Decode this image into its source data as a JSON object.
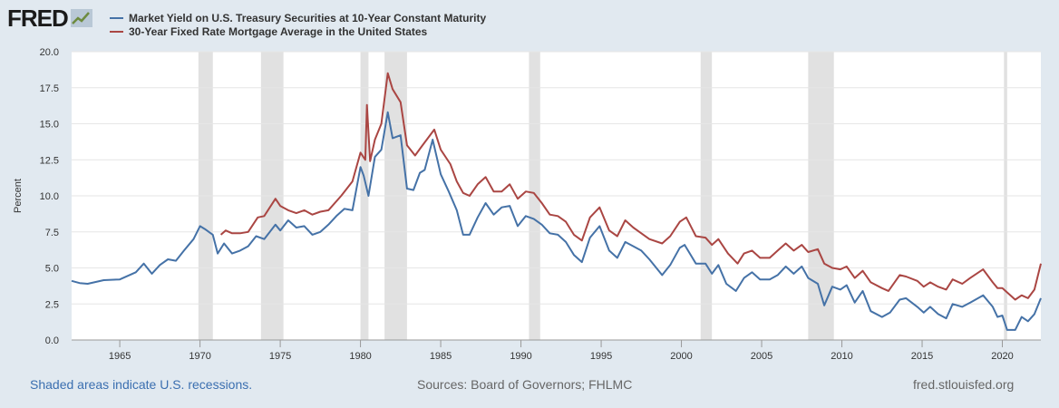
{
  "logo": {
    "text": "FRED"
  },
  "legend": [
    {
      "label": "Market Yield on U.S. Treasury Securities at 10-Year Constant Maturity",
      "color": "#4572a7"
    },
    {
      "label": "30-Year Fixed Rate Mortgage Average in the United States",
      "color": "#aa4643"
    }
  ],
  "footer": {
    "recessions_note": "Shaded areas indicate U.S. recessions.",
    "sources": "Sources: Board of Governors; FHLMC",
    "site": "fred.stlouisfed.org"
  },
  "chart_data": {
    "type": "line",
    "title": "",
    "xlabel": "",
    "ylabel": "Percent",
    "xlim": [
      1962.0,
      2022.4
    ],
    "ylim": [
      0,
      20
    ],
    "grid": true,
    "x_ticks": [
      1965,
      1970,
      1975,
      1980,
      1985,
      1990,
      1995,
      2000,
      2005,
      2010,
      2015,
      2020
    ],
    "x_tick_labels": [
      "1965",
      "1970",
      "1975",
      "1980",
      "1985",
      "1990",
      "1995",
      "2000",
      "2005",
      "2010",
      "2015",
      "2020"
    ],
    "y_ticks": [
      0,
      2.5,
      5,
      7.5,
      10,
      12.5,
      15,
      17.5,
      20
    ],
    "y_tick_labels": [
      "0.0",
      "2.5",
      "5.0",
      "7.5",
      "10.0",
      "12.5",
      "15.0",
      "17.5",
      "20.0"
    ],
    "recessions": [
      [
        1969.9,
        1970.8
      ],
      [
        1973.8,
        1975.2
      ],
      [
        1980.0,
        1980.5
      ],
      [
        1981.5,
        1982.9
      ],
      [
        1990.5,
        1991.2
      ],
      [
        2001.2,
        2001.9
      ],
      [
        2007.9,
        2009.5
      ],
      [
        2020.1,
        2020.3
      ]
    ],
    "series": [
      {
        "name": "Market Yield on U.S. Treasury Securities at 10-Year Constant Maturity",
        "color": "#4572a7",
        "points": [
          [
            1962.0,
            4.1
          ],
          [
            1962.5,
            3.95
          ],
          [
            1963.0,
            3.9
          ],
          [
            1964.0,
            4.15
          ],
          [
            1965.0,
            4.2
          ],
          [
            1966.0,
            4.7
          ],
          [
            1966.5,
            5.3
          ],
          [
            1967.0,
            4.6
          ],
          [
            1967.5,
            5.2
          ],
          [
            1968.0,
            5.6
          ],
          [
            1968.5,
            5.5
          ],
          [
            1969.0,
            6.2
          ],
          [
            1969.6,
            7.0
          ],
          [
            1970.0,
            7.9
          ],
          [
            1970.3,
            7.7
          ],
          [
            1970.8,
            7.3
          ],
          [
            1971.1,
            6.0
          ],
          [
            1971.5,
            6.7
          ],
          [
            1972.0,
            6.0
          ],
          [
            1972.5,
            6.2
          ],
          [
            1973.0,
            6.5
          ],
          [
            1973.5,
            7.2
          ],
          [
            1974.0,
            7.0
          ],
          [
            1974.7,
            8.0
          ],
          [
            1975.0,
            7.6
          ],
          [
            1975.5,
            8.3
          ],
          [
            1976.0,
            7.8
          ],
          [
            1976.5,
            7.9
          ],
          [
            1977.0,
            7.3
          ],
          [
            1977.5,
            7.5
          ],
          [
            1978.0,
            8.0
          ],
          [
            1978.5,
            8.6
          ],
          [
            1979.0,
            9.1
          ],
          [
            1979.5,
            9.0
          ],
          [
            1980.0,
            12.0
          ],
          [
            1980.2,
            11.4
          ],
          [
            1980.5,
            10.0
          ],
          [
            1980.9,
            12.7
          ],
          [
            1981.3,
            13.2
          ],
          [
            1981.7,
            15.8
          ],
          [
            1982.0,
            14.0
          ],
          [
            1982.5,
            14.2
          ],
          [
            1982.9,
            10.5
          ],
          [
            1983.3,
            10.4
          ],
          [
            1983.7,
            11.6
          ],
          [
            1984.0,
            11.8
          ],
          [
            1984.5,
            13.9
          ],
          [
            1985.0,
            11.5
          ],
          [
            1985.5,
            10.3
          ],
          [
            1986.0,
            9.0
          ],
          [
            1986.4,
            7.3
          ],
          [
            1986.8,
            7.3
          ],
          [
            1987.3,
            8.5
          ],
          [
            1987.8,
            9.5
          ],
          [
            1988.3,
            8.7
          ],
          [
            1988.8,
            9.2
          ],
          [
            1989.3,
            9.3
          ],
          [
            1989.8,
            7.9
          ],
          [
            1990.3,
            8.6
          ],
          [
            1990.8,
            8.4
          ],
          [
            1991.3,
            8.0
          ],
          [
            1991.8,
            7.4
          ],
          [
            1992.3,
            7.3
          ],
          [
            1992.8,
            6.8
          ],
          [
            1993.3,
            5.9
          ],
          [
            1993.8,
            5.4
          ],
          [
            1994.3,
            7.1
          ],
          [
            1994.9,
            7.9
          ],
          [
            1995.5,
            6.2
          ],
          [
            1996.0,
            5.7
          ],
          [
            1996.5,
            6.8
          ],
          [
            1997.0,
            6.5
          ],
          [
            1997.5,
            6.2
          ],
          [
            1998.0,
            5.6
          ],
          [
            1998.8,
            4.5
          ],
          [
            1999.3,
            5.2
          ],
          [
            1999.9,
            6.4
          ],
          [
            2000.2,
            6.6
          ],
          [
            2000.9,
            5.3
          ],
          [
            2001.5,
            5.3
          ],
          [
            2001.9,
            4.6
          ],
          [
            2002.3,
            5.2
          ],
          [
            2002.8,
            3.9
          ],
          [
            2003.4,
            3.4
          ],
          [
            2003.9,
            4.3
          ],
          [
            2004.4,
            4.7
          ],
          [
            2004.9,
            4.2
          ],
          [
            2005.5,
            4.2
          ],
          [
            2006.0,
            4.5
          ],
          [
            2006.5,
            5.1
          ],
          [
            2007.0,
            4.6
          ],
          [
            2007.5,
            5.1
          ],
          [
            2007.9,
            4.3
          ],
          [
            2008.5,
            3.9
          ],
          [
            2008.9,
            2.4
          ],
          [
            2009.4,
            3.7
          ],
          [
            2009.9,
            3.5
          ],
          [
            2010.3,
            3.8
          ],
          [
            2010.8,
            2.6
          ],
          [
            2011.3,
            3.4
          ],
          [
            2011.8,
            2.0
          ],
          [
            2012.5,
            1.6
          ],
          [
            2013.0,
            1.9
          ],
          [
            2013.6,
            2.8
          ],
          [
            2014.0,
            2.9
          ],
          [
            2014.7,
            2.3
          ],
          [
            2015.1,
            1.9
          ],
          [
            2015.5,
            2.3
          ],
          [
            2016.0,
            1.8
          ],
          [
            2016.5,
            1.5
          ],
          [
            2016.9,
            2.5
          ],
          [
            2017.5,
            2.3
          ],
          [
            2018.0,
            2.6
          ],
          [
            2018.8,
            3.1
          ],
          [
            2019.4,
            2.3
          ],
          [
            2019.7,
            1.6
          ],
          [
            2020.0,
            1.7
          ],
          [
            2020.3,
            0.7
          ],
          [
            2020.8,
            0.7
          ],
          [
            2021.2,
            1.6
          ],
          [
            2021.6,
            1.3
          ],
          [
            2022.0,
            1.8
          ],
          [
            2022.4,
            2.9
          ]
        ]
      },
      {
        "name": "30-Year Fixed Rate Mortgage Average in the United States",
        "color": "#aa4643",
        "points": [
          [
            1971.3,
            7.3
          ],
          [
            1971.6,
            7.6
          ],
          [
            1972.0,
            7.4
          ],
          [
            1972.5,
            7.4
          ],
          [
            1973.0,
            7.5
          ],
          [
            1973.6,
            8.5
          ],
          [
            1974.0,
            8.6
          ],
          [
            1974.7,
            9.8
          ],
          [
            1975.0,
            9.3
          ],
          [
            1975.5,
            9.0
          ],
          [
            1976.0,
            8.8
          ],
          [
            1976.5,
            9.0
          ],
          [
            1977.0,
            8.7
          ],
          [
            1977.5,
            8.9
          ],
          [
            1978.0,
            9.0
          ],
          [
            1978.8,
            10.0
          ],
          [
            1979.5,
            11.0
          ],
          [
            1980.0,
            13.0
          ],
          [
            1980.3,
            12.5
          ],
          [
            1980.4,
            16.3
          ],
          [
            1980.6,
            12.4
          ],
          [
            1980.9,
            13.9
          ],
          [
            1981.3,
            15.0
          ],
          [
            1981.7,
            18.5
          ],
          [
            1982.0,
            17.4
          ],
          [
            1982.5,
            16.5
          ],
          [
            1982.9,
            13.5
          ],
          [
            1983.4,
            12.8
          ],
          [
            1983.8,
            13.4
          ],
          [
            1984.2,
            14.0
          ],
          [
            1984.6,
            14.6
          ],
          [
            1985.0,
            13.2
          ],
          [
            1985.6,
            12.2
          ],
          [
            1986.0,
            11.0
          ],
          [
            1986.4,
            10.2
          ],
          [
            1986.8,
            10.0
          ],
          [
            1987.3,
            10.8
          ],
          [
            1987.8,
            11.3
          ],
          [
            1988.3,
            10.3
          ],
          [
            1988.8,
            10.3
          ],
          [
            1989.3,
            10.8
          ],
          [
            1989.8,
            9.8
          ],
          [
            1990.3,
            10.3
          ],
          [
            1990.8,
            10.2
          ],
          [
            1991.3,
            9.5
          ],
          [
            1991.8,
            8.7
          ],
          [
            1992.3,
            8.6
          ],
          [
            1992.8,
            8.2
          ],
          [
            1993.3,
            7.3
          ],
          [
            1993.8,
            6.9
          ],
          [
            1994.3,
            8.5
          ],
          [
            1994.9,
            9.2
          ],
          [
            1995.5,
            7.6
          ],
          [
            1996.0,
            7.2
          ],
          [
            1996.5,
            8.3
          ],
          [
            1997.0,
            7.8
          ],
          [
            1997.5,
            7.4
          ],
          [
            1998.0,
            7.0
          ],
          [
            1998.8,
            6.7
          ],
          [
            1999.3,
            7.2
          ],
          [
            1999.9,
            8.2
          ],
          [
            2000.3,
            8.5
          ],
          [
            2000.9,
            7.2
          ],
          [
            2001.5,
            7.1
          ],
          [
            2001.9,
            6.6
          ],
          [
            2002.3,
            7.0
          ],
          [
            2002.9,
            6.0
          ],
          [
            2003.5,
            5.3
          ],
          [
            2003.9,
            6.0
          ],
          [
            2004.4,
            6.2
          ],
          [
            2004.9,
            5.7
          ],
          [
            2005.5,
            5.7
          ],
          [
            2006.0,
            6.2
          ],
          [
            2006.5,
            6.7
          ],
          [
            2007.0,
            6.2
          ],
          [
            2007.5,
            6.6
          ],
          [
            2007.9,
            6.1
          ],
          [
            2008.5,
            6.3
          ],
          [
            2008.9,
            5.3
          ],
          [
            2009.4,
            5.0
          ],
          [
            2009.9,
            4.9
          ],
          [
            2010.3,
            5.1
          ],
          [
            2010.8,
            4.3
          ],
          [
            2011.3,
            4.8
          ],
          [
            2011.8,
            4.0
          ],
          [
            2012.5,
            3.6
          ],
          [
            2012.9,
            3.4
          ],
          [
            2013.6,
            4.5
          ],
          [
            2014.0,
            4.4
          ],
          [
            2014.7,
            4.1
          ],
          [
            2015.1,
            3.7
          ],
          [
            2015.5,
            4.0
          ],
          [
            2016.0,
            3.7
          ],
          [
            2016.5,
            3.5
          ],
          [
            2016.9,
            4.2
          ],
          [
            2017.5,
            3.9
          ],
          [
            2018.0,
            4.3
          ],
          [
            2018.8,
            4.9
          ],
          [
            2019.4,
            4.0
          ],
          [
            2019.7,
            3.6
          ],
          [
            2020.0,
            3.6
          ],
          [
            2020.3,
            3.3
          ],
          [
            2020.8,
            2.8
          ],
          [
            2021.2,
            3.1
          ],
          [
            2021.6,
            2.9
          ],
          [
            2022.0,
            3.5
          ],
          [
            2022.4,
            5.3
          ]
        ]
      }
    ]
  }
}
